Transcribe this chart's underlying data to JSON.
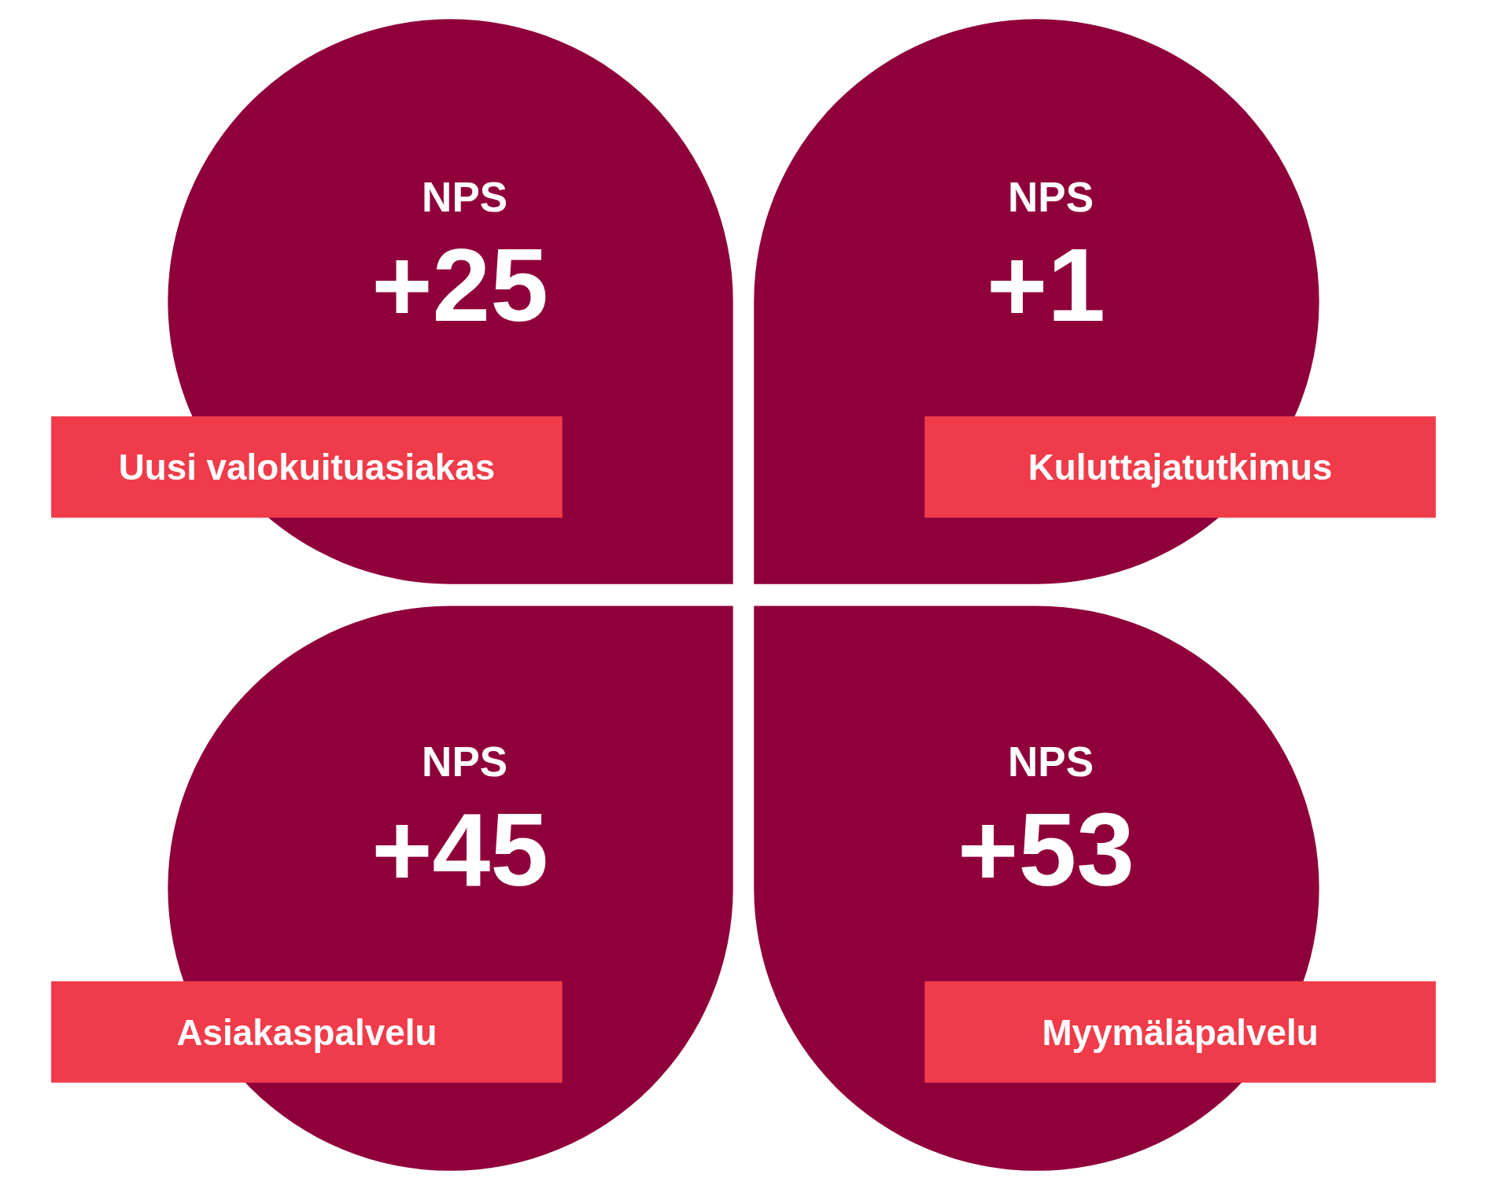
{
  "chart_data": {
    "type": "other",
    "ylabel": "NPS",
    "categories": [
      "Uusi valokuituasiakas",
      "Kuluttajatutkimus",
      "Asiakaspalvelu",
      "Myymäläpalvelu"
    ],
    "values": [
      25,
      1,
      45,
      53
    ],
    "value_labels": [
      "+25",
      "+1",
      "+45",
      "+53"
    ],
    "colors": [
      "#8f003b",
      "#8f003b",
      "#8f003b",
      "#8f003b"
    ]
  }
}
